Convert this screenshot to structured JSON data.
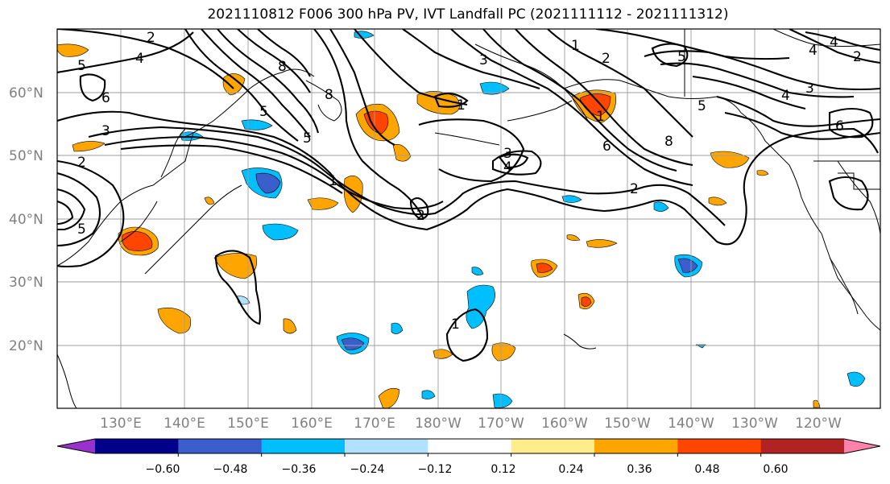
{
  "title": "2021110812 F006 300 hPa PV, IVT Landfall PC (2021111112 - 2021111312)",
  "map": {
    "lat_labels": [
      "60°N",
      "50°N",
      "40°N",
      "30°N",
      "20°N"
    ],
    "lon_labels": [
      "130°E",
      "140°E",
      "150°E",
      "160°E",
      "170°E",
      "180°W",
      "170°W",
      "160°W",
      "150°W",
      "140°W",
      "130°W",
      "120°W"
    ],
    "contour_labels": [
      "2",
      "4",
      "5",
      "6",
      "8",
      "3",
      "2",
      "5",
      "1",
      "8",
      "1",
      "3",
      "4",
      "2",
      "1",
      "3",
      "5",
      "1",
      "2",
      "5",
      "6",
      "8",
      "2",
      "4",
      "3",
      "6",
      "5",
      "4",
      "2",
      "4",
      "5",
      "1"
    ],
    "colors": {
      "neg_4": "#9932cc",
      "neg_3": "#00008b",
      "neg_2": "#3a5fcd",
      "neg_1": "#00bfff",
      "neg_0": "#b0e2ff",
      "zero": "#ffffff",
      "pos_0": "#ffec8b",
      "pos_1": "#ffa500",
      "pos_2": "#ff4500",
      "pos_3": "#b22222",
      "pos_4": "#ff82ab"
    }
  },
  "colorbar": {
    "ticks": [
      "−0.60",
      "−0.48",
      "−0.36",
      "−0.24",
      "−0.12",
      "0.12",
      "0.24",
      "0.36",
      "0.48",
      "0.60"
    ],
    "colors": [
      "#9932cc",
      "#00008b",
      "#3a5fcd",
      "#00bfff",
      "#b0e2ff",
      "#ffffff",
      "#ffec8b",
      "#ffa500",
      "#ff4500",
      "#b22222",
      "#ff82ab"
    ]
  }
}
